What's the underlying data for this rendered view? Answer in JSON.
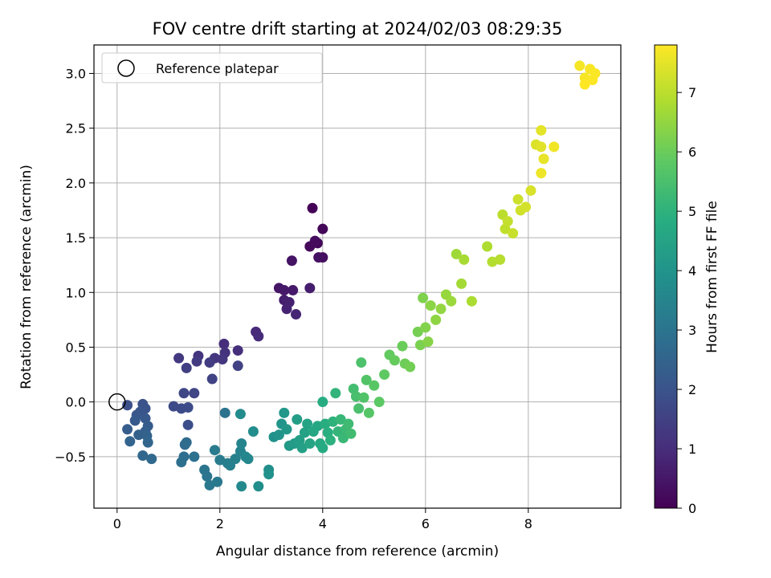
{
  "chart_data": {
    "type": "scatter",
    "title": "FOV centre drift starting at 2024/02/03 08:29:35",
    "xlabel": "Angular distance from reference (arcmin)",
    "ylabel": "Rotation from reference (arcmin)",
    "xlim": [
      -0.45,
      9.8
    ],
    "ylim": [
      -0.97,
      3.26
    ],
    "xticks": [
      0,
      2,
      4,
      6,
      8
    ],
    "yticks": [
      -0.5,
      0.0,
      0.5,
      1.0,
      1.5,
      2.0,
      2.5,
      3.0
    ],
    "xtick_labels": [
      "0",
      "2",
      "4",
      "6",
      "8"
    ],
    "ytick_labels": [
      "−0.5",
      "0.0",
      "0.5",
      "1.0",
      "1.5",
      "2.0",
      "2.5",
      "3.0"
    ],
    "grid": true,
    "legend": {
      "placement": "upper-left",
      "entries": [
        "Reference platepar"
      ]
    },
    "reference_point": {
      "x": 0.0,
      "y": 0.0
    },
    "colorbar": {
      "label": "Hours from first FF file",
      "colormap": "viridis",
      "range": [
        0,
        7.8
      ],
      "ticks": [
        0,
        1,
        2,
        3,
        4,
        5,
        6,
        7
      ],
      "tick_labels": [
        "0",
        "1",
        "2",
        "3",
        "4",
        "5",
        "6",
        "7"
      ]
    },
    "points": [
      {
        "x": 3.8,
        "y": 1.77,
        "t": 0.05
      },
      {
        "x": 4.0,
        "y": 1.58,
        "t": 0.1
      },
      {
        "x": 3.9,
        "y": 1.45,
        "t": 0.15
      },
      {
        "x": 3.75,
        "y": 1.42,
        "t": 0.2
      },
      {
        "x": 3.85,
        "y": 1.47,
        "t": 0.25
      },
      {
        "x": 4.0,
        "y": 1.32,
        "t": 0.3
      },
      {
        "x": 3.92,
        "y": 1.32,
        "t": 0.35
      },
      {
        "x": 3.4,
        "y": 1.29,
        "t": 0.4
      },
      {
        "x": 3.15,
        "y": 1.04,
        "t": 0.45
      },
      {
        "x": 3.25,
        "y": 1.02,
        "t": 0.5
      },
      {
        "x": 3.42,
        "y": 1.02,
        "t": 0.55
      },
      {
        "x": 3.75,
        "y": 1.04,
        "t": 0.6
      },
      {
        "x": 3.25,
        "y": 0.93,
        "t": 0.65
      },
      {
        "x": 3.35,
        "y": 0.91,
        "t": 0.7
      },
      {
        "x": 3.3,
        "y": 0.85,
        "t": 0.75
      },
      {
        "x": 3.48,
        "y": 0.8,
        "t": 0.8
      },
      {
        "x": 2.7,
        "y": 0.64,
        "t": 0.9
      },
      {
        "x": 2.75,
        "y": 0.6,
        "t": 0.95
      },
      {
        "x": 2.08,
        "y": 0.53,
        "t": 1.0
      },
      {
        "x": 2.35,
        "y": 0.47,
        "t": 1.05
      },
      {
        "x": 2.1,
        "y": 0.45,
        "t": 1.1
      },
      {
        "x": 1.58,
        "y": 0.42,
        "t": 1.15
      },
      {
        "x": 1.9,
        "y": 0.4,
        "t": 1.2
      },
      {
        "x": 2.05,
        "y": 0.39,
        "t": 1.25
      },
      {
        "x": 1.2,
        "y": 0.4,
        "t": 1.3
      },
      {
        "x": 1.55,
        "y": 0.37,
        "t": 1.35
      },
      {
        "x": 1.8,
        "y": 0.36,
        "t": 1.4
      },
      {
        "x": 1.35,
        "y": 0.31,
        "t": 1.45
      },
      {
        "x": 2.35,
        "y": 0.33,
        "t": 1.5
      },
      {
        "x": 1.85,
        "y": 0.21,
        "t": 1.55
      },
      {
        "x": 1.5,
        "y": 0.08,
        "t": 1.6
      },
      {
        "x": 1.3,
        "y": 0.08,
        "t": 1.65
      },
      {
        "x": 1.1,
        "y": -0.04,
        "t": 1.7
      },
      {
        "x": 1.25,
        "y": -0.06,
        "t": 1.75
      },
      {
        "x": 1.38,
        "y": -0.05,
        "t": 1.8
      },
      {
        "x": 1.38,
        "y": -0.21,
        "t": 1.85
      },
      {
        "x": 0.2,
        "y": -0.03,
        "t": 1.9
      },
      {
        "x": 0.5,
        "y": -0.02,
        "t": 1.95
      },
      {
        "x": 0.55,
        "y": -0.06,
        "t": 2.0
      },
      {
        "x": 0.45,
        "y": -0.09,
        "t": 2.05
      },
      {
        "x": 0.38,
        "y": -0.12,
        "t": 2.1
      },
      {
        "x": 0.55,
        "y": -0.15,
        "t": 2.15
      },
      {
        "x": 0.35,
        "y": -0.17,
        "t": 2.2
      },
      {
        "x": 0.6,
        "y": -0.22,
        "t": 2.25
      },
      {
        "x": 0.2,
        "y": -0.25,
        "t": 2.3
      },
      {
        "x": 0.55,
        "y": -0.27,
        "t": 2.35
      },
      {
        "x": 0.42,
        "y": -0.3,
        "t": 2.4
      },
      {
        "x": 0.58,
        "y": -0.31,
        "t": 2.45
      },
      {
        "x": 0.25,
        "y": -0.36,
        "t": 2.5
      },
      {
        "x": 0.6,
        "y": -0.37,
        "t": 2.55
      },
      {
        "x": 0.5,
        "y": -0.49,
        "t": 2.6
      },
      {
        "x": 0.67,
        "y": -0.52,
        "t": 2.65
      },
      {
        "x": 1.35,
        "y": -0.37,
        "t": 2.7
      },
      {
        "x": 1.32,
        "y": -0.39,
        "t": 2.75
      },
      {
        "x": 1.3,
        "y": -0.5,
        "t": 2.8
      },
      {
        "x": 1.25,
        "y": -0.55,
        "t": 2.85
      },
      {
        "x": 1.5,
        "y": -0.5,
        "t": 2.9
      },
      {
        "x": 2.1,
        "y": -0.1,
        "t": 2.95
      },
      {
        "x": 1.7,
        "y": -0.62,
        "t": 3.0
      },
      {
        "x": 1.75,
        "y": -0.68,
        "t": 3.05
      },
      {
        "x": 1.8,
        "y": -0.76,
        "t": 3.1
      },
      {
        "x": 1.95,
        "y": -0.73,
        "t": 3.15
      },
      {
        "x": 1.9,
        "y": -0.44,
        "t": 3.2
      },
      {
        "x": 2.0,
        "y": -0.53,
        "t": 3.25
      },
      {
        "x": 2.15,
        "y": -0.56,
        "t": 3.3
      },
      {
        "x": 2.2,
        "y": -0.58,
        "t": 3.35
      },
      {
        "x": 2.3,
        "y": -0.52,
        "t": 3.4
      },
      {
        "x": 2.4,
        "y": -0.45,
        "t": 3.45
      },
      {
        "x": 2.42,
        "y": -0.38,
        "t": 3.5
      },
      {
        "x": 2.5,
        "y": -0.5,
        "t": 3.55
      },
      {
        "x": 2.55,
        "y": -0.52,
        "t": 3.6
      },
      {
        "x": 2.42,
        "y": -0.77,
        "t": 3.65
      },
      {
        "x": 2.4,
        "y": -0.11,
        "t": 3.7
      },
      {
        "x": 2.65,
        "y": -0.27,
        "t": 3.75
      },
      {
        "x": 2.75,
        "y": -0.77,
        "t": 3.8
      },
      {
        "x": 2.95,
        "y": -0.62,
        "t": 3.85
      },
      {
        "x": 2.95,
        "y": -0.66,
        "t": 3.9
      },
      {
        "x": 3.05,
        "y": -0.32,
        "t": 3.95
      },
      {
        "x": 3.15,
        "y": -0.3,
        "t": 4.0
      },
      {
        "x": 3.2,
        "y": -0.2,
        "t": 4.05
      },
      {
        "x": 3.25,
        "y": -0.1,
        "t": 4.1
      },
      {
        "x": 3.3,
        "y": -0.25,
        "t": 4.15
      },
      {
        "x": 3.35,
        "y": -0.4,
        "t": 4.2
      },
      {
        "x": 3.45,
        "y": -0.38,
        "t": 4.25
      },
      {
        "x": 3.5,
        "y": -0.16,
        "t": 4.3
      },
      {
        "x": 3.55,
        "y": -0.35,
        "t": 4.35
      },
      {
        "x": 3.6,
        "y": -0.42,
        "t": 4.4
      },
      {
        "x": 3.65,
        "y": -0.28,
        "t": 4.45
      },
      {
        "x": 3.7,
        "y": -0.2,
        "t": 4.5
      },
      {
        "x": 3.75,
        "y": -0.38,
        "t": 4.55
      },
      {
        "x": 3.82,
        "y": -0.27,
        "t": 4.6
      },
      {
        "x": 3.9,
        "y": -0.22,
        "t": 4.65
      },
      {
        "x": 3.95,
        "y": -0.38,
        "t": 4.7
      },
      {
        "x": 4.0,
        "y": -0.42,
        "t": 4.75
      },
      {
        "x": 4.0,
        "y": 0.0,
        "t": 4.8
      },
      {
        "x": 4.05,
        "y": -0.2,
        "t": 4.85
      },
      {
        "x": 4.1,
        "y": -0.28,
        "t": 4.9
      },
      {
        "x": 4.15,
        "y": -0.35,
        "t": 4.95
      },
      {
        "x": 4.2,
        "y": -0.18,
        "t": 5.0
      },
      {
        "x": 4.25,
        "y": 0.08,
        "t": 5.05
      },
      {
        "x": 4.3,
        "y": -0.27,
        "t": 5.1
      },
      {
        "x": 4.35,
        "y": -0.16,
        "t": 5.15
      },
      {
        "x": 4.4,
        "y": -0.33,
        "t": 5.2
      },
      {
        "x": 4.45,
        "y": -0.25,
        "t": 5.25
      },
      {
        "x": 4.5,
        "y": -0.2,
        "t": 5.3
      },
      {
        "x": 4.55,
        "y": -0.29,
        "t": 5.35
      },
      {
        "x": 4.6,
        "y": 0.12,
        "t": 5.4
      },
      {
        "x": 4.65,
        "y": 0.05,
        "t": 5.45
      },
      {
        "x": 4.7,
        "y": -0.06,
        "t": 5.5
      },
      {
        "x": 4.75,
        "y": 0.36,
        "t": 5.55
      },
      {
        "x": 4.8,
        "y": 0.04,
        "t": 5.6
      },
      {
        "x": 4.85,
        "y": 0.2,
        "t": 5.65
      },
      {
        "x": 4.9,
        "y": -0.1,
        "t": 5.7
      },
      {
        "x": 5.0,
        "y": 0.15,
        "t": 5.75
      },
      {
        "x": 5.1,
        "y": 0.0,
        "t": 5.8
      },
      {
        "x": 5.2,
        "y": 0.25,
        "t": 5.85
      },
      {
        "x": 5.3,
        "y": 0.43,
        "t": 5.9
      },
      {
        "x": 5.4,
        "y": 0.38,
        "t": 5.95
      },
      {
        "x": 5.55,
        "y": 0.51,
        "t": 6.0
      },
      {
        "x": 5.6,
        "y": 0.35,
        "t": 6.05
      },
      {
        "x": 5.7,
        "y": 0.32,
        "t": 6.1
      },
      {
        "x": 5.85,
        "y": 0.64,
        "t": 6.15
      },
      {
        "x": 5.9,
        "y": 0.52,
        "t": 6.2
      },
      {
        "x": 5.95,
        "y": 0.95,
        "t": 6.25
      },
      {
        "x": 6.0,
        "y": 0.68,
        "t": 6.3
      },
      {
        "x": 6.05,
        "y": 0.55,
        "t": 6.35
      },
      {
        "x": 6.1,
        "y": 0.88,
        "t": 6.4
      },
      {
        "x": 6.2,
        "y": 0.75,
        "t": 6.45
      },
      {
        "x": 6.3,
        "y": 0.85,
        "t": 6.5
      },
      {
        "x": 6.4,
        "y": 0.98,
        "t": 6.55
      },
      {
        "x": 6.5,
        "y": 0.92,
        "t": 6.6
      },
      {
        "x": 6.6,
        "y": 1.35,
        "t": 6.65
      },
      {
        "x": 6.7,
        "y": 1.08,
        "t": 6.7
      },
      {
        "x": 6.75,
        "y": 1.3,
        "t": 6.75
      },
      {
        "x": 6.9,
        "y": 0.92,
        "t": 6.8
      },
      {
        "x": 7.2,
        "y": 1.42,
        "t": 6.85
      },
      {
        "x": 7.3,
        "y": 1.28,
        "t": 6.9
      },
      {
        "x": 7.45,
        "y": 1.3,
        "t": 6.95
      },
      {
        "x": 7.5,
        "y": 1.71,
        "t": 7.0
      },
      {
        "x": 7.55,
        "y": 1.58,
        "t": 7.05
      },
      {
        "x": 7.6,
        "y": 1.65,
        "t": 7.1
      },
      {
        "x": 7.7,
        "y": 1.54,
        "t": 7.15
      },
      {
        "x": 7.8,
        "y": 1.85,
        "t": 7.2
      },
      {
        "x": 7.85,
        "y": 1.75,
        "t": 7.25
      },
      {
        "x": 7.95,
        "y": 1.78,
        "t": 7.3
      },
      {
        "x": 8.05,
        "y": 1.93,
        "t": 7.35
      },
      {
        "x": 8.15,
        "y": 2.35,
        "t": 7.4
      },
      {
        "x": 8.25,
        "y": 2.33,
        "t": 7.45
      },
      {
        "x": 8.25,
        "y": 2.48,
        "t": 7.5
      },
      {
        "x": 8.3,
        "y": 2.22,
        "t": 7.55
      },
      {
        "x": 8.25,
        "y": 2.09,
        "t": 7.6
      },
      {
        "x": 8.5,
        "y": 2.33,
        "t": 7.65
      },
      {
        "x": 9.0,
        "y": 3.07,
        "t": 7.7
      },
      {
        "x": 9.1,
        "y": 2.96,
        "t": 7.72
      },
      {
        "x": 9.2,
        "y": 3.04,
        "t": 7.74
      },
      {
        "x": 9.3,
        "y": 3.0,
        "t": 7.76
      },
      {
        "x": 9.25,
        "y": 2.94,
        "t": 7.78
      },
      {
        "x": 9.1,
        "y": 2.9,
        "t": 7.8
      }
    ]
  }
}
